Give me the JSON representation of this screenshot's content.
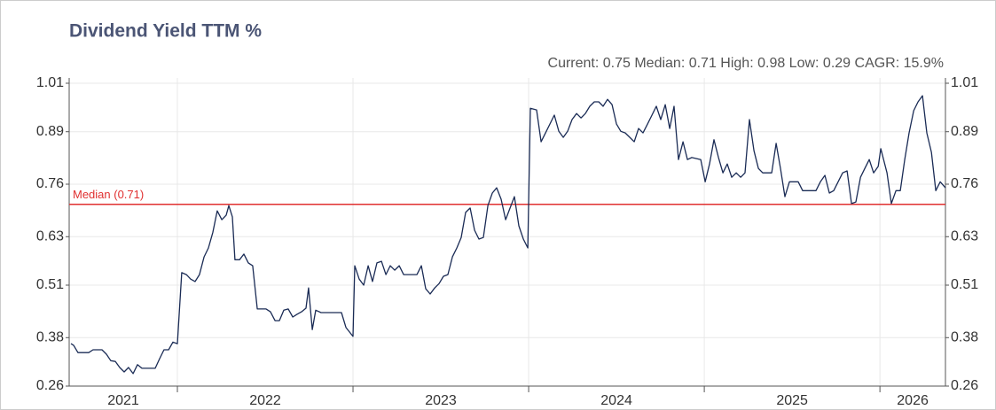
{
  "chart_data": {
    "type": "line",
    "title": "Dividend Yield TTM %",
    "subtitle": "Current: 0.75  Median: 0.71  High: 0.98  Low: 0.29  CAGR: 15.9%",
    "median": 0.71,
    "median_label": "Median (0.71)",
    "median_color": "#e03030",
    "year_labels": [
      "2021",
      "2022",
      "2023",
      "2024",
      "2025",
      "2026"
    ],
    "xlim": [
      2021.384,
      2026.373
    ],
    "xticks": [
      2022,
      2023,
      2024,
      2025,
      2026
    ],
    "ylim": [
      0.26,
      1.01
    ],
    "yticks": [
      0.26,
      0.38,
      0.51,
      0.63,
      0.76,
      0.89,
      1.01
    ],
    "grid": true,
    "series": [
      {
        "name": "Dividend Yield TTM %",
        "color": "#1a2b55",
        "x": [
          2021.394,
          2021.409,
          2021.434,
          2021.495,
          2021.52,
          2021.571,
          2021.596,
          2021.621,
          2021.647,
          2021.672,
          2021.697,
          2021.722,
          2021.748,
          2021.773,
          2021.798,
          2021.874,
          2021.899,
          2021.924,
          2021.95,
          2021.975,
          2022.0,
          2022.025,
          2022.051,
          2022.076,
          2022.101,
          2022.126,
          2022.152,
          2022.177,
          2022.202,
          2022.227,
          2022.253,
          2022.278,
          2022.293,
          2022.313,
          2022.328,
          2022.354,
          2022.379,
          2022.404,
          2022.429,
          2022.455,
          2022.505,
          2022.53,
          2022.556,
          2022.581,
          2022.606,
          2022.631,
          2022.657,
          2022.682,
          2022.707,
          2022.732,
          2022.747,
          2022.768,
          2022.788,
          2022.818,
          2022.934,
          2022.96,
          2023.0,
          2023.01,
          2023.035,
          2023.061,
          2023.086,
          2023.111,
          2023.136,
          2023.162,
          2023.187,
          2023.212,
          2023.237,
          2023.263,
          2023.288,
          2023.364,
          2023.389,
          2023.414,
          2023.439,
          2023.465,
          2023.49,
          2023.515,
          2023.54,
          2023.566,
          2023.591,
          2023.616,
          2023.641,
          2023.667,
          2023.692,
          2023.717,
          2023.742,
          2023.768,
          2023.793,
          2023.818,
          2023.843,
          2023.869,
          2023.894,
          2023.919,
          2023.944,
          2023.97,
          2023.995,
          2024.01,
          2024.045,
          2024.071,
          2024.096,
          2024.121,
          2024.146,
          2024.172,
          2024.197,
          2024.222,
          2024.247,
          2024.273,
          2024.298,
          2024.323,
          2024.348,
          2024.374,
          2024.399,
          2024.424,
          2024.449,
          2024.475,
          2024.5,
          2024.525,
          2024.55,
          2024.576,
          2024.601,
          2024.626,
          2024.651,
          2024.677,
          2024.702,
          2024.727,
          2024.752,
          2024.778,
          2024.803,
          2024.828,
          2024.853,
          2024.879,
          2024.904,
          2024.929,
          2024.98,
          2025.005,
          2025.03,
          2025.055,
          2025.081,
          2025.106,
          2025.131,
          2025.156,
          2025.182,
          2025.207,
          2025.232,
          2025.257,
          2025.283,
          2025.308,
          2025.333,
          2025.384,
          2025.409,
          2025.434,
          2025.459,
          2025.485,
          2025.535,
          2025.56,
          2025.636,
          2025.661,
          2025.687,
          2025.712,
          2025.737,
          2025.762,
          2025.788,
          2025.813,
          2025.838,
          2025.863,
          2025.889,
          2025.914,
          2025.939,
          2025.964,
          2025.99,
          2026.005,
          2026.04,
          2026.065,
          2026.091,
          2026.116,
          2026.141,
          2026.166,
          2026.192,
          2026.217,
          2026.242,
          2026.267,
          2026.293,
          2026.318,
          2026.343,
          2026.373
        ],
        "values": [
          0.365,
          0.361,
          0.343,
          0.343,
          0.35,
          0.35,
          0.339,
          0.323,
          0.321,
          0.306,
          0.295,
          0.306,
          0.291,
          0.313,
          0.304,
          0.304,
          0.328,
          0.35,
          0.35,
          0.369,
          0.365,
          0.541,
          0.536,
          0.525,
          0.519,
          0.536,
          0.58,
          0.602,
          0.641,
          0.694,
          0.672,
          0.683,
          0.707,
          0.679,
          0.573,
          0.573,
          0.587,
          0.565,
          0.558,
          0.451,
          0.451,
          0.444,
          0.422,
          0.422,
          0.448,
          0.451,
          0.431,
          0.438,
          0.444,
          0.453,
          0.503,
          0.4,
          0.448,
          0.442,
          0.442,
          0.405,
          0.383,
          0.558,
          0.525,
          0.51,
          0.558,
          0.519,
          0.565,
          0.569,
          0.536,
          0.558,
          0.547,
          0.558,
          0.536,
          0.536,
          0.558,
          0.501,
          0.488,
          0.503,
          0.514,
          0.532,
          0.536,
          0.58,
          0.602,
          0.628,
          0.69,
          0.701,
          0.646,
          0.624,
          0.628,
          0.707,
          0.738,
          0.751,
          0.723,
          0.672,
          0.701,
          0.729,
          0.657,
          0.624,
          0.602,
          0.948,
          0.944,
          0.865,
          0.887,
          0.909,
          0.931,
          0.891,
          0.876,
          0.891,
          0.92,
          0.935,
          0.924,
          0.935,
          0.953,
          0.964,
          0.964,
          0.953,
          0.97,
          0.957,
          0.909,
          0.891,
          0.887,
          0.876,
          0.865,
          0.898,
          0.887,
          0.909,
          0.931,
          0.953,
          0.92,
          0.957,
          0.898,
          0.953,
          0.821,
          0.865,
          0.821,
          0.826,
          0.821,
          0.766,
          0.81,
          0.87,
          0.826,
          0.788,
          0.81,
          0.777,
          0.788,
          0.777,
          0.788,
          0.92,
          0.843,
          0.799,
          0.788,
          0.788,
          0.861,
          0.799,
          0.729,
          0.766,
          0.766,
          0.744,
          0.744,
          0.766,
          0.782,
          0.738,
          0.744,
          0.766,
          0.788,
          0.793,
          0.712,
          0.716,
          0.777,
          0.799,
          0.821,
          0.788,
          0.804,
          0.848,
          0.788,
          0.712,
          0.744,
          0.744,
          0.821,
          0.887,
          0.942,
          0.964,
          0.979,
          0.887,
          0.839,
          0.744,
          0.766,
          0.751
        ]
      }
    ]
  }
}
